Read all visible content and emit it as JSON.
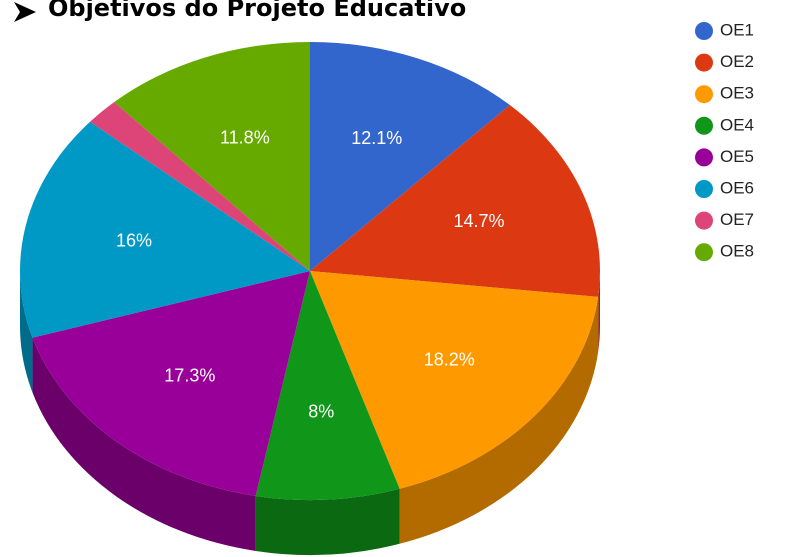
{
  "chart_data": {
    "type": "pie",
    "title": "Objetivos do Projeto Educativo",
    "categories": [
      "OE1",
      "OE2",
      "OE3",
      "OE4",
      "OE5",
      "OE6",
      "OE7",
      "OE8"
    ],
    "values": [
      12.1,
      14.7,
      18.2,
      8,
      17.3,
      16,
      1.9,
      11.8
    ],
    "value_labels": [
      "12.1%",
      "14.7%",
      "18.2%",
      "8%",
      "17.3%",
      "16%",
      null,
      "11.8%"
    ],
    "colors": [
      "#3366cc",
      "#dc3912",
      "#ff9900",
      "#109618",
      "#990099",
      "#0099c6",
      "#dd4477",
      "#66aa00"
    ],
    "legend": "right"
  }
}
